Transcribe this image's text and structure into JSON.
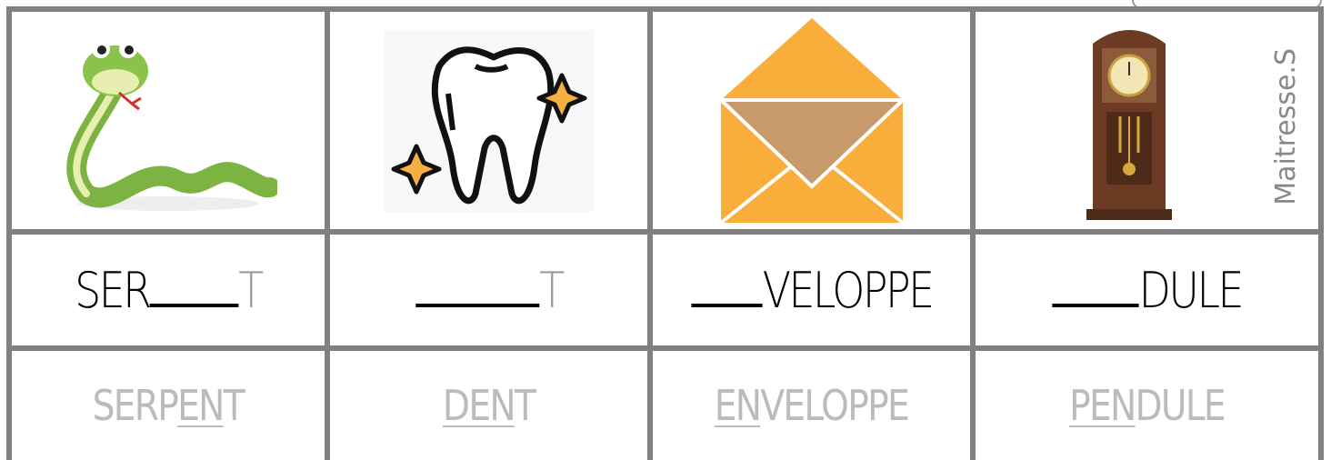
{
  "cells": [
    {
      "puzzle": {
        "before": "SER",
        "silent": "T"
      },
      "answer": {
        "before": "SERP",
        "underlined": "EN",
        "after": "T"
      }
    },
    {
      "puzzle": {
        "silent": "T"
      },
      "answer": {
        "underlined": "DEN",
        "after": "T"
      }
    },
    {
      "puzzle": {
        "after": "VELOPPE"
      },
      "answer": {
        "underlined": "EN",
        "after": "VELOPPE"
      }
    },
    {
      "puzzle": {
        "after": "DULE"
      },
      "answer": {
        "underlined": "PEN",
        "after": "DULE"
      }
    }
  ],
  "watermark": "Maitresse.S"
}
